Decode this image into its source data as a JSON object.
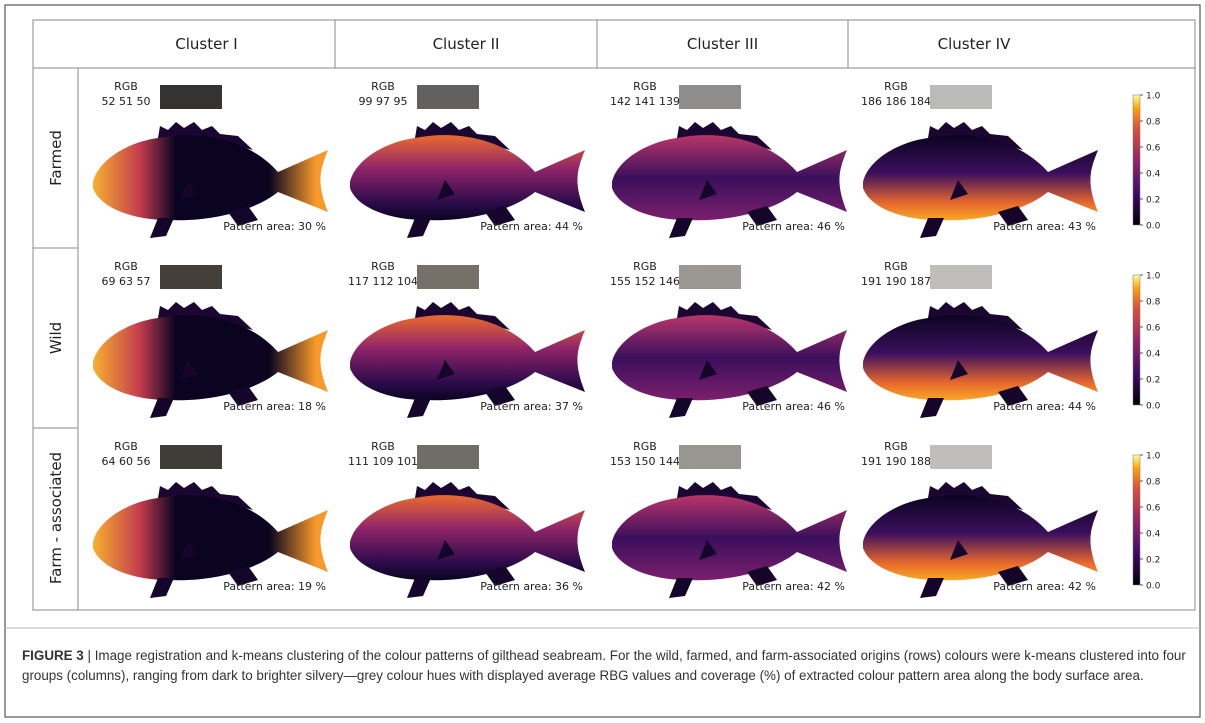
{
  "figure": {
    "columns": [
      "Cluster I",
      "Cluster II",
      "Cluster III",
      "Cluster IV"
    ],
    "rows": [
      {
        "label": "Farmed",
        "cells": [
          {
            "rgb_label": "RGB",
            "rgb": "52 51 50",
            "pattern": "Pattern area: 30 %"
          },
          {
            "rgb_label": "RGB",
            "rgb": "99 97 95",
            "pattern": "Pattern area: 44 %"
          },
          {
            "rgb_label": "RGB",
            "rgb": "142 141 139",
            "pattern": "Pattern area: 46 %"
          },
          {
            "rgb_label": "RGB",
            "rgb": "186 186 184",
            "pattern": "Pattern area: 43 %"
          }
        ]
      },
      {
        "label": "Wild",
        "cells": [
          {
            "rgb_label": "RGB",
            "rgb": "69 63 57",
            "pattern": "Pattern area: 18 %"
          },
          {
            "rgb_label": "RGB",
            "rgb": "117 112 104",
            "pattern": "Pattern area: 37 %"
          },
          {
            "rgb_label": "RGB",
            "rgb": "155 152 146",
            "pattern": "Pattern area: 46 %"
          },
          {
            "rgb_label": "RGB",
            "rgb": "191 190 187",
            "pattern": "Pattern area: 44 %"
          }
        ]
      },
      {
        "label": "Farm - associated",
        "cells": [
          {
            "rgb_label": "RGB",
            "rgb": "64 60 56",
            "pattern": "Pattern area: 19 %"
          },
          {
            "rgb_label": "RGB",
            "rgb": "111 109 101",
            "pattern": "Pattern area: 36 %"
          },
          {
            "rgb_label": "RGB",
            "rgb": "153 150 144",
            "pattern": "Pattern area: 42 %"
          },
          {
            "rgb_label": "RGB",
            "rgb": "191 190 188",
            "pattern": "Pattern area: 42 %"
          }
        ]
      }
    ],
    "colorbar": {
      "lim": [
        0,
        1
      ],
      "ticks": [
        {
          "value": 0,
          "label": "0.0"
        },
        0.2,
        0.4,
        0.6,
        0.8,
        {
          "value": 1,
          "label": "1.0"
        }
      ]
    }
  },
  "caption": {
    "label": "FIGURE 3",
    "text": "| Image registration and k-means clustering of the colour patterns of gilthead seabream. For the wild, farmed, and farm-associated origins (rows) colours were k-means clustered into four groups (columns), ranging from dark to brighter silvery—grey colour hues with displayed average RBG values and coverage (%) of extracted colour pattern area along the body surface area."
  }
}
